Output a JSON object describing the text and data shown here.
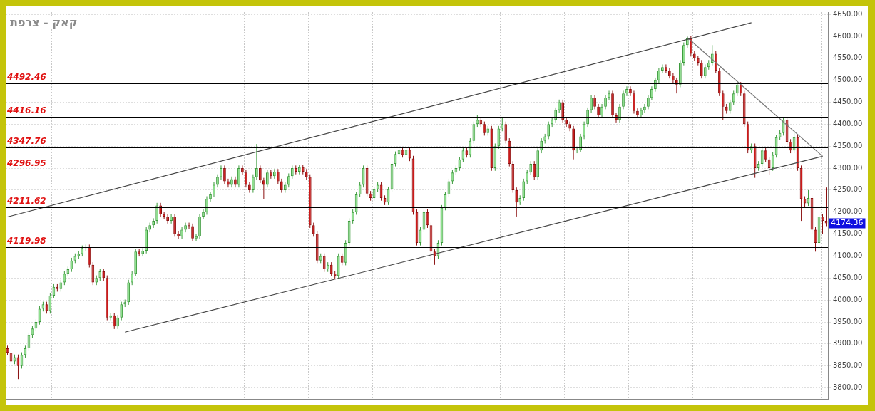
{
  "chart_data": {
    "type": "candlestick",
    "title": "קאק - צרפת",
    "categories": [
      null,
      null,
      null,
      null,
      null,
      null,
      null,
      null,
      null,
      null,
      null,
      null,
      null,
      null,
      null,
      null,
      null,
      null,
      null,
      null,
      null,
      null,
      null,
      null,
      null,
      null,
      null,
      null,
      null,
      null,
      null,
      null,
      null,
      null,
      null,
      null,
      null,
      null,
      null,
      null,
      null,
      null,
      null,
      null,
      null,
      null,
      null,
      null,
      null,
      null,
      null,
      null,
      null,
      null,
      null,
      null,
      null,
      null,
      null,
      null,
      null,
      null,
      null,
      null,
      null,
      null,
      null,
      null,
      null,
      null,
      null,
      null,
      null,
      null,
      null,
      null,
      null,
      null,
      null,
      null,
      null,
      null,
      null,
      null,
      null,
      null,
      null,
      null,
      null,
      null,
      null,
      null,
      null,
      null,
      null,
      null,
      null,
      null,
      null,
      null,
      null,
      null,
      null,
      null,
      null,
      null,
      null,
      null,
      null,
      null,
      null,
      null,
      null,
      null,
      null,
      null,
      null,
      null,
      null,
      null,
      null,
      null,
      null,
      null,
      null,
      null,
      null,
      null,
      null,
      null,
      null,
      null,
      null,
      null,
      null,
      null,
      null,
      null,
      null,
      null,
      null,
      null,
      null,
      null,
      null,
      null,
      null,
      null,
      null,
      null,
      null,
      null,
      null,
      null,
      null,
      null,
      null,
      null,
      null,
      null,
      null,
      null,
      null,
      null,
      null,
      null,
      null,
      null,
      null,
      null,
      null,
      null,
      null,
      null,
      null,
      null,
      null,
      null,
      null,
      null,
      null,
      null,
      null,
      null,
      null,
      null,
      null,
      null,
      null,
      null,
      null,
      null,
      null,
      null,
      null,
      null,
      null,
      null,
      null,
      null,
      null,
      null,
      null,
      null,
      null,
      null,
      null,
      null,
      null,
      null,
      null,
      null,
      null,
      null,
      null,
      null,
      null,
      null,
      null,
      null,
      null,
      null,
      null,
      null,
      null,
      null,
      null,
      null,
      null,
      null,
      null
    ],
    "ohlc": [
      [
        3890,
        3896,
        3874,
        3880
      ],
      [
        3880,
        3886,
        3854,
        3860
      ],
      [
        3860,
        3876,
        3854,
        3870
      ],
      [
        3870,
        3876,
        3820,
        3850
      ],
      [
        3850,
        3881,
        3844,
        3875
      ],
      [
        3875,
        3896,
        3869,
        3890
      ],
      [
        3890,
        3926,
        3884,
        3920
      ],
      [
        3920,
        3941,
        3914,
        3935
      ],
      [
        3935,
        3956,
        3929,
        3950
      ],
      [
        3950,
        3986,
        3944,
        3980
      ],
      [
        3980,
        3996,
        3974,
        3990
      ],
      [
        3990,
        3996,
        3969,
        3975
      ],
      [
        3975,
        4016,
        3969,
        4010
      ],
      [
        4010,
        4036,
        4004,
        4030
      ],
      [
        4030,
        4036,
        4019,
        4025
      ],
      [
        4025,
        4046,
        4019,
        4040
      ],
      [
        4040,
        4066,
        4034,
        4060
      ],
      [
        4060,
        4076,
        4054,
        4070
      ],
      [
        4070,
        4096,
        4064,
        4090
      ],
      [
        4090,
        4106,
        4084,
        4100
      ],
      [
        4100,
        4111,
        4094,
        4105
      ],
      [
        4105,
        4124,
        4099,
        4118
      ],
      [
        4118,
        4126,
        4112,
        4120
      ],
      [
        4120,
        4126,
        4074,
        4080
      ],
      [
        4080,
        4086,
        4034,
        4040
      ],
      [
        4040,
        4056,
        4034,
        4050
      ],
      [
        4050,
        4071,
        4044,
        4065
      ],
      [
        4065,
        4071,
        4044,
        4050
      ],
      [
        4050,
        4056,
        3954,
        3960
      ],
      [
        3960,
        3971,
        3954,
        3965
      ],
      [
        3965,
        3971,
        3934,
        3940
      ],
      [
        3940,
        3966,
        3934,
        3960
      ],
      [
        3960,
        3996,
        3954,
        3990
      ],
      [
        3990,
        4001,
        3984,
        3995
      ],
      [
        3995,
        4046,
        3989,
        4040
      ],
      [
        4040,
        4066,
        4034,
        4060
      ],
      [
        4060,
        4116,
        4054,
        4110
      ],
      [
        4110,
        4116,
        4099,
        4105
      ],
      [
        4105,
        4118,
        4099,
        4112
      ],
      [
        4112,
        4166,
        4106,
        4160
      ],
      [
        4160,
        4176,
        4154,
        4170
      ],
      [
        4170,
        4186,
        4164,
        4180
      ],
      [
        4180,
        4221,
        4174,
        4215
      ],
      [
        4215,
        4221,
        4189,
        4195
      ],
      [
        4195,
        4201,
        4184,
        4190
      ],
      [
        4190,
        4196,
        4174,
        4180
      ],
      [
        4180,
        4196,
        4174,
        4190
      ],
      [
        4190,
        4196,
        4144,
        4150
      ],
      [
        4150,
        4156,
        4139,
        4145
      ],
      [
        4145,
        4166,
        4139,
        4160
      ],
      [
        4160,
        4176,
        4154,
        4170
      ],
      [
        4170,
        4176,
        4162,
        4168
      ],
      [
        4168,
        4174,
        4134,
        4140
      ],
      [
        4140,
        4151,
        4134,
        4145
      ],
      [
        4145,
        4196,
        4139,
        4190
      ],
      [
        4190,
        4206,
        4184,
        4200
      ],
      [
        4200,
        4236,
        4194,
        4230
      ],
      [
        4230,
        4246,
        4224,
        4240
      ],
      [
        4240,
        4268,
        4234,
        4262
      ],
      [
        4262,
        4286,
        4256,
        4280
      ],
      [
        4280,
        4306,
        4274,
        4300
      ],
      [
        4300,
        4306,
        4264,
        4270
      ],
      [
        4270,
        4276,
        4256,
        4262
      ],
      [
        4262,
        4281,
        4256,
        4275
      ],
      [
        4275,
        4281,
        4256,
        4262
      ],
      [
        4262,
        4306,
        4256,
        4300
      ],
      [
        4300,
        4306,
        4284,
        4290
      ],
      [
        4290,
        4296,
        4256,
        4262
      ],
      [
        4262,
        4268,
        4244,
        4250
      ],
      [
        4250,
        4286,
        4244,
        4280
      ],
      [
        4280,
        4355,
        4274,
        4300
      ],
      [
        4300,
        4306,
        4266,
        4272
      ],
      [
        4272,
        4278,
        4230,
        4262
      ],
      [
        4262,
        4296,
        4256,
        4290
      ],
      [
        4290,
        4296,
        4276,
        4282
      ],
      [
        4282,
        4298,
        4276,
        4292
      ],
      [
        4292,
        4298,
        4264,
        4270
      ],
      [
        4270,
        4276,
        4244,
        4250
      ],
      [
        4250,
        4268,
        4244,
        4262
      ],
      [
        4262,
        4288,
        4256,
        4282
      ],
      [
        4282,
        4306,
        4276,
        4300
      ],
      [
        4300,
        4306,
        4286,
        4292
      ],
      [
        4292,
        4308,
        4286,
        4302
      ],
      [
        4302,
        4308,
        4286,
        4292
      ],
      [
        4292,
        4298,
        4274,
        4280
      ],
      [
        4280,
        4286,
        4164,
        4170
      ],
      [
        4170,
        4176,
        4144,
        4150
      ],
      [
        4150,
        4156,
        4084,
        4090
      ],
      [
        4090,
        4106,
        4084,
        4100
      ],
      [
        4100,
        4106,
        4064,
        4070
      ],
      [
        4070,
        4086,
        4064,
        4080
      ],
      [
        4080,
        4086,
        4054,
        4060
      ],
      [
        4060,
        4066,
        4049,
        4055
      ],
      [
        4055,
        4106,
        4049,
        4100
      ],
      [
        4100,
        4106,
        4079,
        4085
      ],
      [
        4085,
        4136,
        4079,
        4130
      ],
      [
        4130,
        4186,
        4124,
        4180
      ],
      [
        4180,
        4206,
        4174,
        4200
      ],
      [
        4200,
        4246,
        4194,
        4240
      ],
      [
        4240,
        4268,
        4234,
        4262
      ],
      [
        4262,
        4306,
        4256,
        4300
      ],
      [
        4300,
        4306,
        4236,
        4242
      ],
      [
        4242,
        4248,
        4226,
        4232
      ],
      [
        4232,
        4258,
        4226,
        4252
      ],
      [
        4252,
        4268,
        4246,
        4262
      ],
      [
        4262,
        4268,
        4226,
        4232
      ],
      [
        4232,
        4238,
        4216,
        4222
      ],
      [
        4222,
        4258,
        4216,
        4252
      ],
      [
        4252,
        4316,
        4246,
        4310
      ],
      [
        4310,
        4338,
        4304,
        4332
      ],
      [
        4332,
        4348,
        4326,
        4342
      ],
      [
        4342,
        4348,
        4324,
        4330
      ],
      [
        4330,
        4348,
        4324,
        4342
      ],
      [
        4342,
        4348,
        4316,
        4322
      ],
      [
        4322,
        4328,
        4194,
        4200
      ],
      [
        4200,
        4206,
        4124,
        4130
      ],
      [
        4130,
        4166,
        4124,
        4160
      ],
      [
        4160,
        4206,
        4154,
        4200
      ],
      [
        4200,
        4206,
        4164,
        4170
      ],
      [
        4170,
        4176,
        4090,
        4110
      ],
      [
        4110,
        4116,
        4080,
        4100
      ],
      [
        4100,
        4136,
        4094,
        4130
      ],
      [
        4130,
        4216,
        4124,
        4210
      ],
      [
        4210,
        4246,
        4204,
        4240
      ],
      [
        4240,
        4276,
        4234,
        4270
      ],
      [
        4270,
        4296,
        4264,
        4290
      ],
      [
        4290,
        4306,
        4284,
        4300
      ],
      [
        4300,
        4326,
        4294,
        4320
      ],
      [
        4320,
        4346,
        4314,
        4340
      ],
      [
        4340,
        4346,
        4324,
        4330
      ],
      [
        4330,
        4368,
        4324,
        4362
      ],
      [
        4362,
        4406,
        4356,
        4400
      ],
      [
        4400,
        4420,
        4394,
        4410
      ],
      [
        4410,
        4416,
        4394,
        4400
      ],
      [
        4400,
        4406,
        4374,
        4380
      ],
      [
        4380,
        4396,
        4374,
        4390
      ],
      [
        4390,
        4396,
        4294,
        4300
      ],
      [
        4300,
        4356,
        4294,
        4350
      ],
      [
        4350,
        4396,
        4344,
        4390
      ],
      [
        4390,
        4415,
        4384,
        4400
      ],
      [
        4400,
        4406,
        4356,
        4362
      ],
      [
        4362,
        4368,
        4304,
        4310
      ],
      [
        4310,
        4316,
        4244,
        4250
      ],
      [
        4250,
        4256,
        4190,
        4222
      ],
      [
        4222,
        4238,
        4216,
        4232
      ],
      [
        4232,
        4276,
        4226,
        4270
      ],
      [
        4270,
        4296,
        4264,
        4290
      ],
      [
        4290,
        4316,
        4284,
        4310
      ],
      [
        4310,
        4316,
        4274,
        4280
      ],
      [
        4280,
        4346,
        4274,
        4340
      ],
      [
        4340,
        4368,
        4334,
        4362
      ],
      [
        4362,
        4378,
        4356,
        4372
      ],
      [
        4372,
        4406,
        4366,
        4400
      ],
      [
        4400,
        4416,
        4394,
        4410
      ],
      [
        4410,
        4438,
        4404,
        4432
      ],
      [
        4432,
        4456,
        4426,
        4450
      ],
      [
        4450,
        4456,
        4404,
        4410
      ],
      [
        4410,
        4416,
        4394,
        4400
      ],
      [
        4400,
        4406,
        4384,
        4390
      ],
      [
        4390,
        4396,
        4320,
        4340
      ],
      [
        4340,
        4348,
        4334,
        4342
      ],
      [
        4342,
        4378,
        4336,
        4372
      ],
      [
        4372,
        4406,
        4366,
        4400
      ],
      [
        4400,
        4438,
        4394,
        4432
      ],
      [
        4432,
        4466,
        4426,
        4460
      ],
      [
        4460,
        4466,
        4434,
        4440
      ],
      [
        4440,
        4446,
        4414,
        4420
      ],
      [
        4420,
        4446,
        4414,
        4440
      ],
      [
        4440,
        4466,
        4434,
        4460
      ],
      [
        4460,
        4476,
        4454,
        4470
      ],
      [
        4470,
        4476,
        4414,
        4420
      ],
      [
        4420,
        4426,
        4404,
        4410
      ],
      [
        4410,
        4446,
        4404,
        4440
      ],
      [
        4440,
        4476,
        4434,
        4470
      ],
      [
        4470,
        4486,
        4464,
        4480
      ],
      [
        4480,
        4486,
        4464,
        4470
      ],
      [
        4470,
        4476,
        4424,
        4430
      ],
      [
        4430,
        4436,
        4414,
        4420
      ],
      [
        4420,
        4438,
        4414,
        4432
      ],
      [
        4432,
        4446,
        4426,
        4440
      ],
      [
        4440,
        4466,
        4434,
        4460
      ],
      [
        4460,
        4486,
        4454,
        4480
      ],
      [
        4480,
        4506,
        4474,
        4500
      ],
      [
        4500,
        4528,
        4494,
        4522
      ],
      [
        4522,
        4536,
        4516,
        4530
      ],
      [
        4530,
        4536,
        4516,
        4522
      ],
      [
        4522,
        4528,
        4504,
        4510
      ],
      [
        4510,
        4516,
        4494,
        4500
      ],
      [
        4500,
        4506,
        4470,
        4490
      ],
      [
        4490,
        4546,
        4484,
        4540
      ],
      [
        4540,
        4586,
        4534,
        4580
      ],
      [
        4580,
        4600,
        4574,
        4595
      ],
      [
        4595,
        4601,
        4554,
        4560
      ],
      [
        4560,
        4566,
        4544,
        4550
      ],
      [
        4550,
        4556,
        4534,
        4540
      ],
      [
        4540,
        4546,
        4504,
        4510
      ],
      [
        4510,
        4536,
        4504,
        4530
      ],
      [
        4530,
        4546,
        4524,
        4540
      ],
      [
        4540,
        4580,
        4534,
        4560
      ],
      [
        4560,
        4566,
        4516,
        4522
      ],
      [
        4522,
        4528,
        4464,
        4470
      ],
      [
        4470,
        4476,
        4410,
        4440
      ],
      [
        4440,
        4446,
        4424,
        4430
      ],
      [
        4430,
        4456,
        4424,
        4450
      ],
      [
        4450,
        4476,
        4444,
        4470
      ],
      [
        4470,
        4496,
        4464,
        4490
      ],
      [
        4490,
        4496,
        4464,
        4470
      ],
      [
        4470,
        4476,
        4394,
        4400
      ],
      [
        4400,
        4406,
        4334,
        4340
      ],
      [
        4340,
        4356,
        4334,
        4350
      ],
      [
        4350,
        4356,
        4278,
        4300
      ],
      [
        4300,
        4316,
        4294,
        4310
      ],
      [
        4310,
        4346,
        4304,
        4340
      ],
      [
        4340,
        4346,
        4314,
        4320
      ],
      [
        4320,
        4326,
        4285,
        4300
      ],
      [
        4300,
        4336,
        4294,
        4330
      ],
      [
        4330,
        4376,
        4324,
        4370
      ],
      [
        4370,
        4386,
        4364,
        4380
      ],
      [
        4380,
        4414,
        4374,
        4410
      ],
      [
        4410,
        4416,
        4354,
        4360
      ],
      [
        4360,
        4366,
        4334,
        4340
      ],
      [
        4340,
        4386,
        4334,
        4370
      ],
      [
        4370,
        4376,
        4294,
        4300
      ],
      [
        4300,
        4306,
        4180,
        4230
      ],
      [
        4230,
        4236,
        4210,
        4220
      ],
      [
        4220,
        4250,
        4214,
        4232
      ],
      [
        4232,
        4238,
        4150,
        4160
      ],
      [
        4160,
        4166,
        4110,
        4130
      ],
      [
        4130,
        4196,
        4124,
        4190
      ],
      [
        4190,
        4196,
        4150,
        4180
      ],
      [
        4180,
        4256,
        4168,
        4174.36
      ]
    ],
    "series": [
      {
        "type": "line",
        "color": "#444444",
        "values": [
          4189,
          null,
          null,
          null,
          null,
          null,
          null,
          null,
          null,
          null,
          null,
          null,
          null,
          null,
          null,
          null,
          null,
          null,
          null,
          null,
          null,
          null,
          null,
          null,
          null,
          null,
          null,
          null,
          null,
          null,
          null,
          null,
          null,
          null,
          null,
          null,
          null,
          null,
          null,
          null,
          null,
          null,
          null,
          null,
          null,
          null,
          null,
          null,
          null,
          null,
          null,
          null,
          null,
          null,
          null,
          null,
          null,
          null,
          null,
          null,
          null,
          null,
          null,
          null,
          null,
          null,
          null,
          null,
          null,
          null,
          null,
          null,
          null,
          null,
          null,
          null,
          null,
          null,
          null,
          null,
          null,
          null,
          null,
          null,
          null,
          null,
          null,
          null,
          null,
          null,
          null,
          null,
          null,
          null,
          null,
          null,
          null,
          null,
          null,
          null,
          null,
          null,
          null,
          null,
          null,
          null,
          null,
          null,
          null,
          null,
          null,
          null,
          null,
          null,
          null,
          null,
          null,
          null,
          null,
          null,
          null,
          null,
          null,
          null,
          null,
          null,
          null,
          null,
          null,
          null,
          null,
          null,
          null,
          null,
          null,
          null,
          null,
          null,
          null,
          null,
          null,
          null,
          null,
          null,
          null,
          null,
          null,
          null,
          null,
          null,
          null,
          null,
          null,
          null,
          null,
          null,
          null,
          null,
          null,
          null,
          null,
          null,
          null,
          null,
          null,
          null,
          null,
          null,
          null,
          null,
          null,
          null,
          null,
          null,
          null,
          null,
          null,
          null,
          null,
          null,
          null,
          null,
          null,
          null,
          null,
          null,
          null,
          null,
          null,
          null,
          null,
          null,
          null,
          null,
          null,
          null,
          null,
          null,
          null,
          null,
          null,
          null,
          null,
          null,
          null,
          null,
          null,
          null,
          null,
          4631,
          null,
          null,
          null,
          null,
          null,
          null,
          null,
          null,
          null,
          null,
          null,
          null,
          null,
          null,
          null,
          null,
          null,
          null,
          null,
          null,
          null
        ]
      },
      {
        "type": "line",
        "color": "#444444",
        "values": [
          null,
          null,
          null,
          null,
          null,
          null,
          null,
          null,
          null,
          null,
          null,
          null,
          null,
          null,
          null,
          null,
          null,
          null,
          null,
          null,
          null,
          null,
          null,
          null,
          null,
          null,
          null,
          null,
          null,
          null,
          null,
          null,
          null,
          3927,
          null,
          null,
          null,
          null,
          null,
          null,
          null,
          null,
          null,
          null,
          null,
          null,
          null,
          null,
          null,
          null,
          null,
          null,
          null,
          null,
          null,
          null,
          null,
          null,
          null,
          null,
          null,
          null,
          null,
          null,
          null,
          null,
          null,
          null,
          null,
          null,
          null,
          null,
          null,
          null,
          null,
          null,
          null,
          null,
          null,
          null,
          null,
          null,
          null,
          null,
          null,
          null,
          null,
          null,
          null,
          null,
          null,
          null,
          null,
          null,
          null,
          null,
          null,
          null,
          null,
          null,
          null,
          null,
          null,
          null,
          null,
          null,
          null,
          null,
          null,
          null,
          null,
          null,
          null,
          null,
          null,
          null,
          null,
          null,
          null,
          null,
          null,
          null,
          null,
          null,
          null,
          null,
          null,
          null,
          null,
          null,
          null,
          null,
          null,
          null,
          null,
          null,
          null,
          null,
          null,
          null,
          null,
          null,
          null,
          null,
          null,
          null,
          null,
          null,
          null,
          null,
          null,
          null,
          null,
          null,
          null,
          null,
          null,
          null,
          null,
          null,
          null,
          null,
          null,
          null,
          null,
          null,
          null,
          null,
          null,
          null,
          null,
          null,
          null,
          null,
          null,
          null,
          null,
          null,
          null,
          null,
          null,
          null,
          null,
          null,
          null,
          null,
          null,
          null,
          null,
          null,
          null,
          null,
          null,
          null,
          null,
          null,
          null,
          null,
          null,
          null,
          null,
          null,
          null,
          null,
          null,
          null,
          null,
          null,
          null,
          null,
          null,
          null,
          null,
          null,
          null,
          null,
          null,
          null,
          null,
          null,
          null,
          null,
          null,
          null,
          null,
          null,
          null,
          null,
          null,
          4327,
          null
        ]
      },
      {
        "type": "line",
        "color": "#777777",
        "values": [
          null,
          null,
          null,
          null,
          null,
          null,
          null,
          null,
          null,
          null,
          null,
          null,
          null,
          null,
          null,
          null,
          null,
          null,
          null,
          null,
          null,
          null,
          null,
          null,
          null,
          null,
          null,
          null,
          null,
          null,
          null,
          null,
          null,
          null,
          null,
          null,
          null,
          null,
          null,
          null,
          null,
          null,
          null,
          null,
          null,
          null,
          null,
          null,
          null,
          null,
          null,
          null,
          null,
          null,
          null,
          null,
          null,
          null,
          null,
          null,
          null,
          null,
          null,
          null,
          null,
          null,
          null,
          null,
          null,
          null,
          null,
          null,
          null,
          null,
          null,
          null,
          null,
          null,
          null,
          null,
          null,
          null,
          null,
          null,
          null,
          null,
          null,
          null,
          null,
          null,
          null,
          null,
          null,
          null,
          null,
          null,
          null,
          null,
          null,
          null,
          null,
          null,
          null,
          null,
          null,
          null,
          null,
          null,
          null,
          null,
          null,
          null,
          null,
          null,
          null,
          null,
          null,
          null,
          null,
          null,
          null,
          null,
          null,
          null,
          null,
          null,
          null,
          null,
          null,
          null,
          null,
          null,
          null,
          null,
          null,
          null,
          null,
          null,
          null,
          null,
          null,
          null,
          null,
          null,
          null,
          null,
          null,
          null,
          null,
          null,
          null,
          null,
          null,
          null,
          null,
          null,
          null,
          null,
          null,
          null,
          null,
          null,
          null,
          null,
          null,
          null,
          null,
          null,
          null,
          null,
          null,
          null,
          null,
          null,
          null,
          null,
          null,
          null,
          null,
          null,
          null,
          null,
          null,
          null,
          null,
          null,
          null,
          null,
          null,
          null,
          null,
          4597,
          null,
          null,
          null,
          null,
          null,
          null,
          null,
          null,
          null,
          null,
          null,
          null,
          null,
          null,
          null,
          null,
          null,
          null,
          null,
          null,
          null,
          null,
          null,
          null,
          null,
          null,
          null,
          null,
          null,
          null,
          null,
          null,
          null,
          null,
          null,
          null,
          null,
          4327,
          null
        ]
      }
    ],
    "ylim": [
      3775,
      4655
    ],
    "yticks": [
      {
        "value": 3800,
        "label": "3800.00"
      },
      {
        "value": 3850,
        "label": "3850.00"
      },
      {
        "value": 3900,
        "label": "3900.00"
      },
      {
        "value": 3950,
        "label": "3950.00"
      },
      {
        "value": 4000,
        "label": "4000.00"
      },
      {
        "value": 4050,
        "label": "4050.00"
      },
      {
        "value": 4100,
        "label": "4100.00"
      },
      {
        "value": 4150,
        "label": "4150.00"
      },
      {
        "value": 4200,
        "label": "4200.00"
      },
      {
        "value": 4250,
        "label": "4250.00"
      },
      {
        "value": 4300,
        "label": "4300.00"
      },
      {
        "value": 4350,
        "label": "4350.00"
      },
      {
        "value": 4400,
        "label": "4400.00"
      },
      {
        "value": 4450,
        "label": "4450.00"
      },
      {
        "value": 4500,
        "label": "4500.00"
      },
      {
        "value": 4550,
        "label": "4550.00"
      },
      {
        "value": 4600,
        "label": "4600.00"
      },
      {
        "value": 4650,
        "label": "4650.00"
      }
    ],
    "ref_lines": [
      {
        "axis": "y",
        "value": 4492.46,
        "label": "4492.46"
      },
      {
        "axis": "y",
        "value": 4416.16,
        "label": "4416.16"
      },
      {
        "axis": "y",
        "value": 4347.76,
        "label": "4347.76"
      },
      {
        "axis": "y",
        "value": 4296.95,
        "label": "4296.95"
      },
      {
        "axis": "y",
        "value": 4211.62,
        "label": "4211.62"
      },
      {
        "axis": "y",
        "value": 4119.98,
        "label": "4119.98"
      }
    ],
    "annotations": [
      "4174.36"
    ],
    "grid": true,
    "tick_labels": "y"
  }
}
